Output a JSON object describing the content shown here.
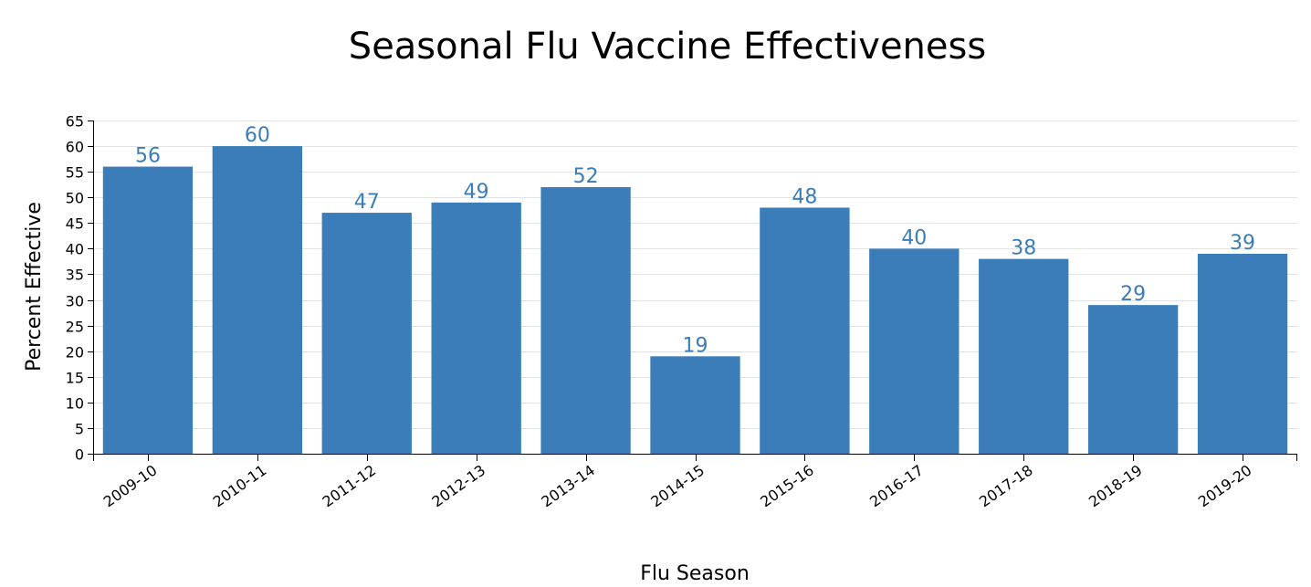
{
  "chart_data": {
    "type": "bar",
    "title": "Seasonal Flu Vaccine Effectiveness",
    "xlabel": "Flu Season",
    "ylabel": "Percent Effective",
    "categories": [
      "2009-10",
      "2010-11",
      "2011-12",
      "2012-13",
      "2013-14",
      "2014-15",
      "2015-16",
      "2016-17",
      "2017-18",
      "2018-19",
      "2019-20"
    ],
    "values": [
      56,
      60,
      47,
      49,
      52,
      19,
      48,
      40,
      38,
      29,
      39
    ],
    "ylim": [
      0,
      65
    ],
    "yticks": [
      0,
      5,
      10,
      15,
      20,
      25,
      30,
      35,
      40,
      45,
      50,
      55,
      60,
      65
    ],
    "grid": true,
    "legend": "none",
    "colors": {
      "bar": "#3a7db8",
      "data_label": "#3a7db8"
    }
  }
}
